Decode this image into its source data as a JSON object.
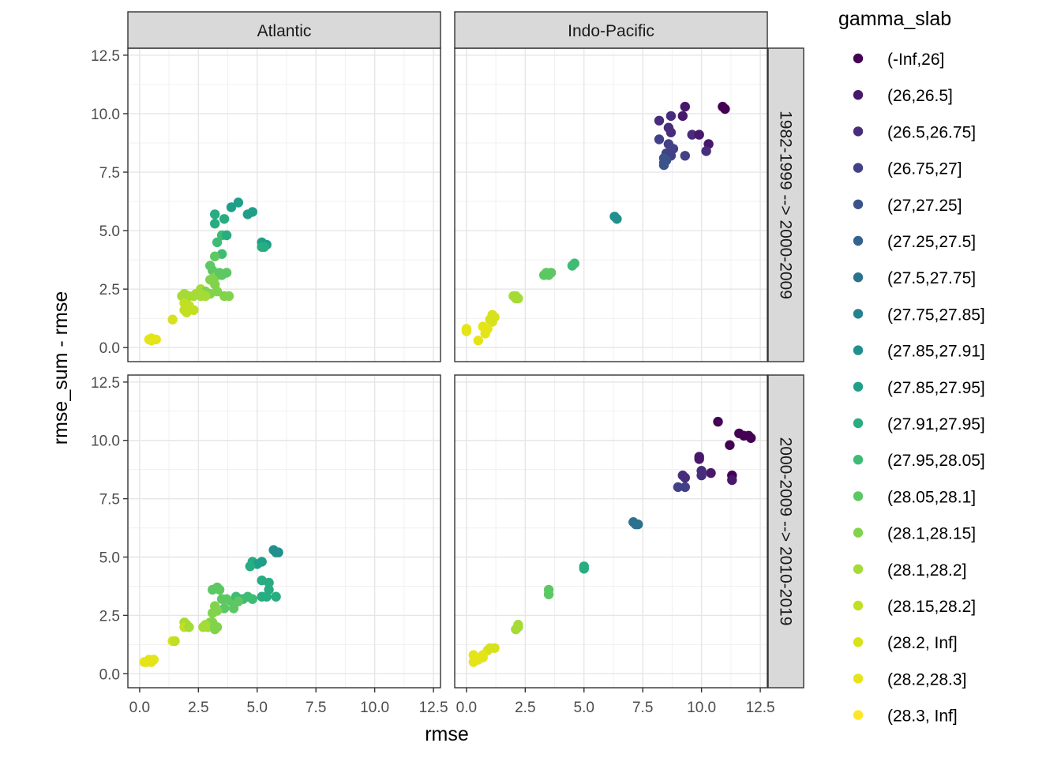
{
  "chart_data": {
    "type": "scatter",
    "facet_columns": [
      "Atlantic",
      "Indo-Pacific"
    ],
    "facet_rows": [
      "1982-1999 --> 2000-2009",
      "2000-2009 --> 2010-2019"
    ],
    "xlabel": "rmse",
    "ylabel": "rmse_sum - rmse",
    "xlim": [
      -0.5,
      12.8
    ],
    "ylim": [
      -0.6,
      12.8
    ],
    "x_ticks": [
      0,
      2.5,
      5,
      7.5,
      10,
      12.5
    ],
    "x_tick_labels": [
      "0.0",
      "2.5",
      "5.0",
      "7.5",
      "10.0",
      "12.5"
    ],
    "y_ticks": [
      0,
      2.5,
      5,
      7.5,
      10,
      12.5
    ],
    "y_tick_labels": [
      "0.0",
      "2.5",
      "5.0",
      "7.5",
      "10.0",
      "12.5"
    ],
    "grid": true,
    "legend": {
      "title": "gamma_slab",
      "position": "right",
      "entries": [
        {
          "label": "(-Inf,26]",
          "color": "#440154"
        },
        {
          "label": "(26,26.5]",
          "color": "#48186A"
        },
        {
          "label": "(26.5,26.75]",
          "color": "#472D7B"
        },
        {
          "label": "(26.75,27]",
          "color": "#424086"
        },
        {
          "label": "(27,27.25]",
          "color": "#3B528B"
        },
        {
          "label": "(27.25,27.5]",
          "color": "#33638D"
        },
        {
          "label": "(27.5,27.75]",
          "color": "#2C728E"
        },
        {
          "label": "(27.75,27.85]",
          "color": "#26828E"
        },
        {
          "label": "(27.85,27.91]",
          "color": "#21908C"
        },
        {
          "label": "(27.85,27.95]",
          "color": "#1F9F88"
        },
        {
          "label": "(27.91,27.95]",
          "color": "#27AD81"
        },
        {
          "label": "(27.95,28.05]",
          "color": "#3EBC74"
        },
        {
          "label": "(28.05,28.1]",
          "color": "#5DC863"
        },
        {
          "label": "(28.1,28.15]",
          "color": "#82D34C"
        },
        {
          "label": "(28.1,28.2]",
          "color": "#A5DB36"
        },
        {
          "label": "(28.15,28.2]",
          "color": "#C2DF23"
        },
        {
          "label": "(28.2, Inf]",
          "color": "#D7E21A"
        },
        {
          "label": "(28.2,28.3]",
          "color": "#E5E419"
        },
        {
          "label": "(28.3, Inf]",
          "color": "#FDE725"
        }
      ]
    },
    "panels": [
      {
        "column": "Atlantic",
        "row": "1982-1999 --> 2000-2009",
        "points": [
          [
            3.2,
            5.7
          ],
          [
            3.6,
            5.5
          ],
          [
            3.9,
            6.0
          ],
          [
            4.2,
            6.2
          ],
          [
            4.6,
            5.7
          ],
          [
            4.8,
            5.8
          ],
          [
            3.2,
            5.3
          ],
          [
            3.5,
            4.8
          ],
          [
            3.7,
            4.8
          ],
          [
            3.3,
            4.5
          ],
          [
            3.5,
            4.0
          ],
          [
            3.2,
            3.9
          ],
          [
            3.0,
            3.5
          ],
          [
            3.1,
            3.3
          ],
          [
            3.2,
            3.0
          ],
          [
            3.4,
            3.2
          ],
          [
            3.0,
            2.9
          ],
          [
            3.2,
            2.7
          ],
          [
            3.5,
            3.1
          ],
          [
            3.7,
            3.2
          ],
          [
            2.6,
            2.5
          ],
          [
            2.8,
            2.4
          ],
          [
            3.0,
            2.3
          ],
          [
            2.6,
            2.2
          ],
          [
            3.3,
            2.4
          ],
          [
            3.6,
            2.2
          ],
          [
            3.8,
            2.2
          ],
          [
            2.8,
            2.2
          ],
          [
            2.6,
            2.3
          ],
          [
            5.2,
            4.5
          ],
          [
            5.3,
            4.4
          ],
          [
            5.4,
            4.4
          ],
          [
            5.2,
            4.3
          ],
          [
            5.3,
            4.3
          ],
          [
            1.9,
            2.3
          ],
          [
            2.1,
            2.2
          ],
          [
            2.3,
            2.2
          ],
          [
            1.8,
            2.2
          ],
          [
            1.9,
            1.9
          ],
          [
            2.1,
            1.8
          ],
          [
            1.9,
            1.6
          ],
          [
            2.3,
            1.6
          ],
          [
            2.0,
            1.5
          ],
          [
            2.4,
            2.3
          ],
          [
            1.4,
            1.2
          ],
          [
            0.5,
            0.4
          ],
          [
            0.7,
            0.35
          ],
          [
            0.4,
            0.35
          ],
          [
            0.5,
            0.3
          ]
        ]
      },
      {
        "column": "Indo-Pacific",
        "row": "1982-1999 --> 2000-2009",
        "points": [
          [
            9.3,
            10.3
          ],
          [
            10.9,
            10.3
          ],
          [
            11.0,
            10.2
          ],
          [
            8.7,
            9.9
          ],
          [
            9.2,
            9.9
          ],
          [
            8.2,
            9.7
          ],
          [
            8.6,
            9.4
          ],
          [
            8.7,
            9.2
          ],
          [
            9.6,
            9.1
          ],
          [
            9.9,
            9.1
          ],
          [
            10.3,
            8.7
          ],
          [
            10.2,
            8.4
          ],
          [
            8.2,
            8.9
          ],
          [
            8.6,
            8.7
          ],
          [
            8.8,
            8.5
          ],
          [
            8.5,
            8.3
          ],
          [
            8.7,
            8.2
          ],
          [
            8.4,
            8.1
          ],
          [
            9.3,
            8.2
          ],
          [
            8.5,
            8.0
          ],
          [
            8.4,
            7.9
          ],
          [
            8.4,
            7.8
          ],
          [
            6.3,
            5.6
          ],
          [
            6.4,
            5.5
          ],
          [
            4.6,
            3.6
          ],
          [
            4.5,
            3.5
          ],
          [
            3.3,
            3.1
          ],
          [
            3.6,
            3.2
          ],
          [
            3.5,
            3.1
          ],
          [
            3.4,
            3.2
          ],
          [
            2.1,
            2.2
          ],
          [
            2.2,
            2.1
          ],
          [
            2.0,
            2.2
          ],
          [
            2.1,
            2.1
          ],
          [
            1.1,
            1.4
          ],
          [
            1.1,
            1.2
          ],
          [
            1.2,
            1.3
          ],
          [
            1.0,
            1.2
          ],
          [
            1.1,
            1.1
          ],
          [
            0.7,
            0.9
          ],
          [
            0.8,
            0.6
          ],
          [
            0.9,
            0.8
          ],
          [
            0.0,
            0.8
          ],
          [
            0.0,
            0.7
          ],
          [
            0.5,
            0.3
          ]
        ]
      },
      {
        "column": "Atlantic",
        "row": "2000-2009 --> 2010-2019",
        "points": [
          [
            4.8,
            4.8
          ],
          [
            5.0,
            4.7
          ],
          [
            5.2,
            4.8
          ],
          [
            4.7,
            4.6
          ],
          [
            5.2,
            4.0
          ],
          [
            5.5,
            3.9
          ],
          [
            5.5,
            3.6
          ],
          [
            5.8,
            3.3
          ],
          [
            5.4,
            3.3
          ],
          [
            5.2,
            3.3
          ],
          [
            4.8,
            3.2
          ],
          [
            4.6,
            3.3
          ],
          [
            4.4,
            3.2
          ],
          [
            4.3,
            3.2
          ],
          [
            5.8,
            5.2
          ],
          [
            5.9,
            5.2
          ],
          [
            5.7,
            5.3
          ],
          [
            3.1,
            3.6
          ],
          [
            3.3,
            3.7
          ],
          [
            3.4,
            3.6
          ],
          [
            3.5,
            3.2
          ],
          [
            3.7,
            3.2
          ],
          [
            3.9,
            3.1
          ],
          [
            4.1,
            3.3
          ],
          [
            4.2,
            3.1
          ],
          [
            3.6,
            2.8
          ],
          [
            4.0,
            2.8
          ],
          [
            3.2,
            2.9
          ],
          [
            3.1,
            2.6
          ],
          [
            3.3,
            2.7
          ],
          [
            2.9,
            2.0
          ],
          [
            3.0,
            2.2
          ],
          [
            3.1,
            2.2
          ],
          [
            3.3,
            2.0
          ],
          [
            3.2,
            1.9
          ],
          [
            2.8,
            2.1
          ],
          [
            2.7,
            2.0
          ],
          [
            1.9,
            2.2
          ],
          [
            2.0,
            2.1
          ],
          [
            1.9,
            2.0
          ],
          [
            2.1,
            2.0
          ],
          [
            1.4,
            1.4
          ],
          [
            1.5,
            1.4
          ],
          [
            0.2,
            0.5
          ],
          [
            0.3,
            0.5
          ],
          [
            0.5,
            0.5
          ],
          [
            0.6,
            0.6
          ],
          [
            0.4,
            0.6
          ]
        ]
      },
      {
        "column": "Indo-Pacific",
        "row": "2000-2009 --> 2010-2019",
        "points": [
          [
            10.7,
            10.8
          ],
          [
            11.6,
            10.3
          ],
          [
            11.8,
            10.2
          ],
          [
            12.0,
            10.2
          ],
          [
            12.1,
            10.1
          ],
          [
            11.2,
            9.8
          ],
          [
            9.9,
            9.3
          ],
          [
            9.9,
            9.2
          ],
          [
            10.0,
            8.7
          ],
          [
            10.4,
            8.6
          ],
          [
            10.0,
            8.5
          ],
          [
            11.3,
            8.5
          ],
          [
            11.3,
            8.3
          ],
          [
            9.0,
            8.0
          ],
          [
            9.3,
            8.0
          ],
          [
            9.2,
            8.5
          ],
          [
            9.3,
            8.4
          ],
          [
            7.1,
            6.5
          ],
          [
            7.2,
            6.4
          ],
          [
            7.3,
            6.4
          ],
          [
            5.0,
            4.6
          ],
          [
            5.0,
            4.5
          ],
          [
            3.5,
            3.6
          ],
          [
            3.5,
            3.4
          ],
          [
            2.2,
            2.1
          ],
          [
            2.2,
            2.0
          ],
          [
            2.1,
            1.9
          ],
          [
            1.2,
            1.1
          ],
          [
            1.0,
            1.1
          ],
          [
            0.9,
            1.0
          ],
          [
            0.7,
            0.8
          ],
          [
            0.7,
            0.7
          ],
          [
            0.3,
            0.8
          ],
          [
            0.3,
            0.5
          ],
          [
            0.5,
            0.6
          ]
        ]
      }
    ]
  }
}
